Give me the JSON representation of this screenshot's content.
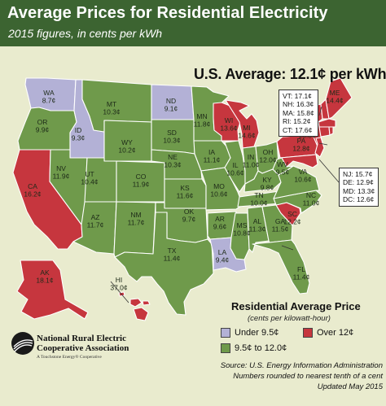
{
  "header": {
    "title": "Average Prices for Residential Electricity",
    "subtitle": "2015 figures, in cents per kWh"
  },
  "us_average": "U.S. Average: 12.1¢ per kWh",
  "colors": {
    "banner": "#3c6431",
    "background": "#e9ebce",
    "under_9_5": "#b3b1d6",
    "between": "#6f9a4b",
    "over_12": "#c6363e",
    "state_border": "#ffffff"
  },
  "states": [
    {
      "abbr": "WA",
      "price": "8.7¢",
      "category": "under"
    },
    {
      "abbr": "OR",
      "price": "9.9¢",
      "category": "mid"
    },
    {
      "abbr": "CA",
      "price": "16.2¢",
      "category": "over"
    },
    {
      "abbr": "ID",
      "price": "9.3¢",
      "category": "under"
    },
    {
      "abbr": "NV",
      "price": "11.9¢",
      "category": "mid"
    },
    {
      "abbr": "MT",
      "price": "10.3¢",
      "category": "mid"
    },
    {
      "abbr": "WY",
      "price": "10.2¢",
      "category": "mid"
    },
    {
      "abbr": "UT",
      "price": "10.4¢",
      "category": "mid"
    },
    {
      "abbr": "AZ",
      "price": "11.7¢",
      "category": "mid"
    },
    {
      "abbr": "CO",
      "price": "11.9¢",
      "category": "mid"
    },
    {
      "abbr": "NM",
      "price": "11.7¢",
      "category": "mid"
    },
    {
      "abbr": "ND",
      "price": "9.1¢",
      "category": "under"
    },
    {
      "abbr": "SD",
      "price": "10.3¢",
      "category": "mid"
    },
    {
      "abbr": "NE",
      "price": "10.3¢",
      "category": "mid"
    },
    {
      "abbr": "KS",
      "price": "11.6¢",
      "category": "mid"
    },
    {
      "abbr": "OK",
      "price": "9.7¢",
      "category": "mid"
    },
    {
      "abbr": "TX",
      "price": "11.4¢",
      "category": "mid"
    },
    {
      "abbr": "MN",
      "price": "11.8¢",
      "category": "mid"
    },
    {
      "abbr": "IA",
      "price": "11.1¢",
      "category": "mid"
    },
    {
      "abbr": "MO",
      "price": "10.6¢",
      "category": "mid"
    },
    {
      "abbr": "AR",
      "price": "9.6¢",
      "category": "mid"
    },
    {
      "abbr": "LA",
      "price": "9.4¢",
      "category": "under"
    },
    {
      "abbr": "WI",
      "price": "13.6¢",
      "category": "over"
    },
    {
      "abbr": "IL",
      "price": "10.6¢",
      "category": "mid"
    },
    {
      "abbr": "MI",
      "price": "14.6¢",
      "category": "over"
    },
    {
      "abbr": "IN",
      "price": "11.0¢",
      "category": "mid"
    },
    {
      "abbr": "OH",
      "price": "12.0¢",
      "category": "mid"
    },
    {
      "abbr": "KY",
      "price": "9.8¢",
      "category": "mid"
    },
    {
      "abbr": "TN",
      "price": "10.0¢",
      "category": "mid"
    },
    {
      "abbr": "MS",
      "price": "10.8¢",
      "category": "mid"
    },
    {
      "abbr": "AL",
      "price": "11.3¢",
      "category": "mid"
    },
    {
      "abbr": "GA",
      "price": "11.5¢",
      "category": "mid"
    },
    {
      "abbr": "FL",
      "price": "11.4¢",
      "category": "mid"
    },
    {
      "abbr": "SC",
      "price": "12.2¢",
      "category": "over"
    },
    {
      "abbr": "NC",
      "price": "11.0¢",
      "category": "mid"
    },
    {
      "abbr": "VA",
      "price": "10.6¢",
      "category": "mid"
    },
    {
      "abbr": "WV",
      "price": "9.5¢",
      "category": "mid"
    },
    {
      "abbr": "PA",
      "price": "12.8¢",
      "category": "over"
    },
    {
      "abbr": "NY",
      "price": "18.8¢",
      "category": "over"
    },
    {
      "abbr": "ME",
      "price": "14.4¢",
      "category": "over"
    },
    {
      "abbr": "AK",
      "price": "18.1¢",
      "category": "over"
    },
    {
      "abbr": "HI",
      "price": "37.0¢",
      "category": "over"
    }
  ],
  "callout_northeast": [
    "VT: 17.1¢",
    "NH: 16.3¢",
    "MA: 15.8¢",
    "RI: 15.2¢",
    "CT: 17.6¢"
  ],
  "callout_midatlantic": [
    "NJ: 15.7¢",
    "DE: 12.9¢",
    "MD: 13.3¢",
    "DC: 12.6¢"
  ],
  "legend": {
    "title": "Residential Average Price",
    "subtitle": "(cents per kilowatt-hour)",
    "under": "Under 9.5¢",
    "over": "Over 12¢",
    "mid": "9.5¢ to 12.0¢"
  },
  "organization": {
    "name_line1": "National Rural Electric",
    "name_line2": "Cooperative Association",
    "tagline": "A Touchstone Energy® Cooperative"
  },
  "source": {
    "line1": "Source: U.S. Energy Information Administration",
    "line2": "Numbers rounded to nearest tenth of a cent",
    "line3": "Updated May 2015"
  }
}
